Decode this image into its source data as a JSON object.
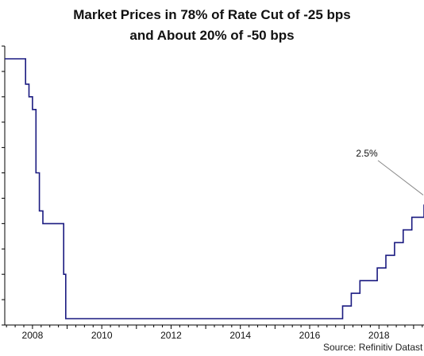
{
  "title_line1": "Market Prices in 78% of Rate Cut of -25 bps",
  "title_line2": "and About 20% of -50 bps",
  "source": "Source: Refinitiv Datast",
  "annotation": "2.5%",
  "colors": {
    "series": "#1a1a80",
    "axis": "#000000"
  },
  "chart_data": {
    "type": "line",
    "title": "Market Prices in 78% of Rate Cut of -25 bps and About 20% of -50 bps",
    "x_tick_labels": [
      "2008",
      "2010",
      "2012",
      "2014",
      "2016",
      "2018"
    ],
    "x_ticks": [
      2008,
      2010,
      2012,
      2014,
      2016,
      2018
    ],
    "xlim": [
      2007.2,
      2019.3
    ],
    "ylim": [
      0,
      5.5
    ],
    "y_tick_values": [
      0,
      0.5,
      1,
      1.5,
      2,
      2.5,
      3,
      3.5,
      4,
      4.5,
      5,
      5.5
    ],
    "y_tick_labels_visible": false,
    "step": true,
    "annotations": [
      {
        "text": "2.5%",
        "x": 2019.3,
        "y": 2.5
      }
    ],
    "series": [
      {
        "x": [
          2007.2,
          2007.7,
          2007.8,
          2007.9,
          2008.0,
          2008.1,
          2008.2,
          2008.3,
          2008.75,
          2008.9,
          2008.96,
          2015.95,
          2016.95,
          2017.2,
          2017.45,
          2017.95,
          2018.2,
          2018.45,
          2018.7,
          2018.95,
          2019.3
        ],
        "y": [
          5.25,
          5.25,
          4.75,
          4.5,
          4.25,
          3.0,
          2.25,
          2.0,
          2.0,
          1.0,
          0.125,
          0.125,
          0.375,
          0.625,
          0.875,
          1.125,
          1.375,
          1.625,
          1.875,
          2.125,
          2.375
        ]
      }
    ]
  }
}
